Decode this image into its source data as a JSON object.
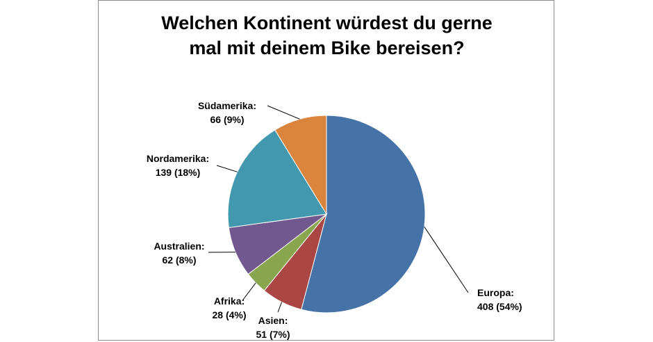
{
  "chart_data": {
    "type": "pie",
    "title_lines": [
      "Welchen Kontinent würdest du gerne",
      "mal mit deinem Bike bereisen?"
    ],
    "slices": [
      {
        "label": "Europa",
        "value": 408,
        "percent": "54%",
        "color": "#4572A7"
      },
      {
        "label": "Asien",
        "value": 51,
        "percent": "7%",
        "color": "#AA4643"
      },
      {
        "label": "Afrika",
        "value": 28,
        "percent": "4%",
        "color": "#89A54E"
      },
      {
        "label": "Australien",
        "value": 62,
        "percent": "8%",
        "color": "#71588F"
      },
      {
        "label": "Nordamerika",
        "value": 139,
        "percent": "18%",
        "color": "#4198AF"
      },
      {
        "label": "Südamerika",
        "value": 66,
        "percent": "9%",
        "color": "#DB843D"
      }
    ],
    "start_angle": "12 o'clock",
    "direction": "clockwise",
    "legend": "none",
    "data_labels": "outside with leader lines"
  }
}
